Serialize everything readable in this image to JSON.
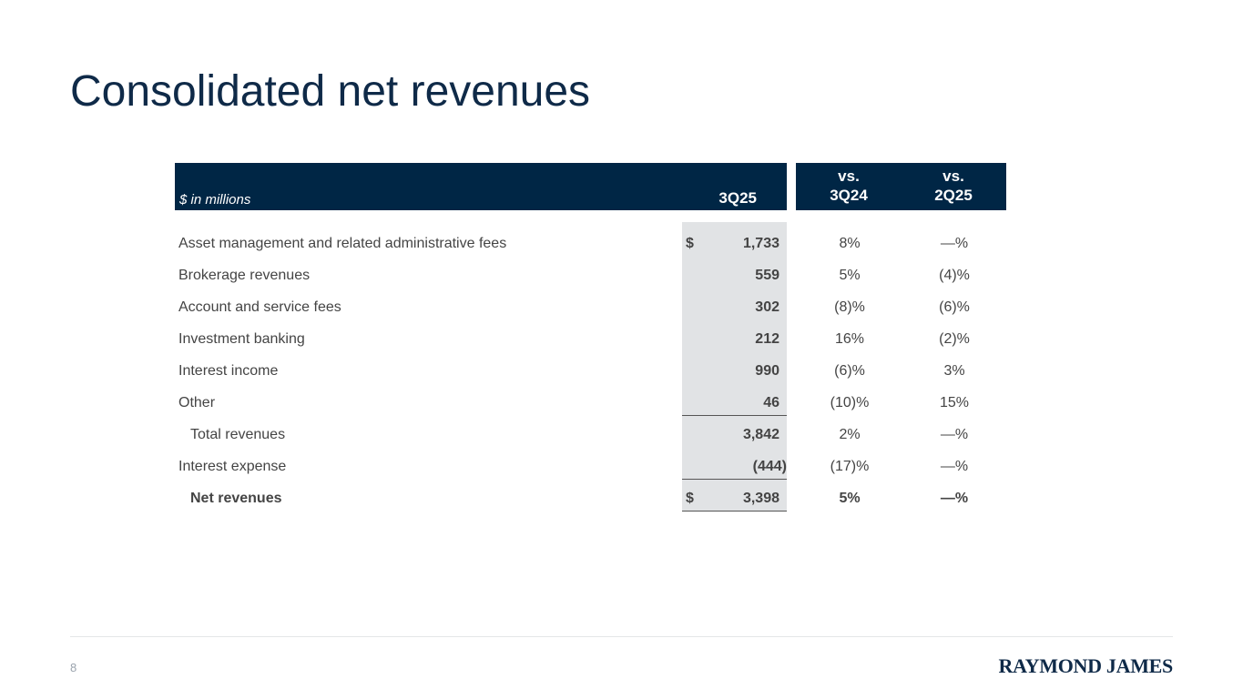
{
  "slide": {
    "title": "Consolidated net revenues",
    "page_number": "8",
    "logo_text": "RAYMOND JAMES"
  },
  "table": {
    "unit_label": "$ in millions",
    "period_header": "3Q25",
    "compare_headers": [
      {
        "line1": "vs.",
        "line2": "3Q24"
      },
      {
        "line1": "vs.",
        "line2": "2Q25"
      }
    ],
    "rows": [
      {
        "label": "Asset management and related administrative fees",
        "dollar": "$",
        "value": "1,733",
        "vs_3q24": "8%",
        "vs_2q25": "—%"
      },
      {
        "label": "Brokerage revenues",
        "dollar": "",
        "value": "559",
        "vs_3q24": "5%",
        "vs_2q25": "(4)%"
      },
      {
        "label": "Account and service fees",
        "dollar": "",
        "value": "302",
        "vs_3q24": "(8)%",
        "vs_2q25": "(6)%"
      },
      {
        "label": "Investment banking",
        "dollar": "",
        "value": "212",
        "vs_3q24": "16%",
        "vs_2q25": "(2)%"
      },
      {
        "label": "Interest income",
        "dollar": "",
        "value": "990",
        "vs_3q24": "(6)%",
        "vs_2q25": "3%"
      },
      {
        "label": "Other",
        "dollar": "",
        "value": "46",
        "vs_3q24": "(10)%",
        "vs_2q25": "15%"
      },
      {
        "label": "Total revenues",
        "dollar": "",
        "value": "3,842",
        "vs_3q24": "2%",
        "vs_2q25": "—%"
      },
      {
        "label": "Interest expense",
        "dollar": "",
        "value": "(444)",
        "vs_3q24": "(17)%",
        "vs_2q25": "—%"
      },
      {
        "label": "Net revenues",
        "dollar": "$",
        "value": "3,398",
        "vs_3q24": "5%",
        "vs_2q25": "—%"
      }
    ]
  },
  "colors": {
    "header_bg": "#002645",
    "title": "#0f2a48",
    "shade": "#e1e3e5"
  }
}
